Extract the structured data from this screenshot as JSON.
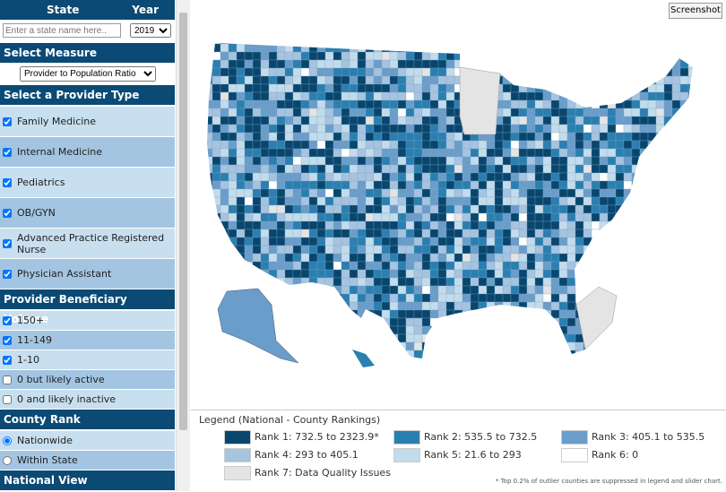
{
  "sidebar": {
    "header": {
      "state": "State",
      "year": "Year"
    },
    "state_placeholder": "Enter a state name here..",
    "year_select": "2019",
    "measure": {
      "title": "Select Measure",
      "value": "Provider to Population Ratio"
    },
    "provider_type": {
      "title": "Select a Provider Type",
      "items": [
        {
          "label": "Family Medicine",
          "checked": true
        },
        {
          "label": "Internal Medicine",
          "checked": true
        },
        {
          "label": "Pediatrics",
          "checked": true
        },
        {
          "label": "OB/GYN",
          "checked": true
        },
        {
          "label": "Advanced Practice Registered Nurse",
          "checked": true
        },
        {
          "label": "Physician Assistant",
          "checked": true
        }
      ]
    },
    "beneficiary_volume": {
      "title": "Provider Beneficiary Volume",
      "items": [
        {
          "label": "150+",
          "checked": true
        },
        {
          "label": "11-149",
          "checked": true
        },
        {
          "label": "1-10",
          "checked": true
        },
        {
          "label": "0 but likely active",
          "checked": false
        },
        {
          "label": "0 and likely inactive",
          "checked": false
        }
      ]
    },
    "county_rank": {
      "title": "County Rank",
      "options": [
        {
          "label": "Nationwide",
          "selected": true
        },
        {
          "label": "Within State",
          "selected": false
        }
      ]
    },
    "national_view": "National View"
  },
  "screenshot_button": "Screenshot",
  "legend": {
    "title": "Legend (National - County Rankings)",
    "items": [
      {
        "label": "Rank 1: 732.5 to 2323.9*",
        "color": "#08466e"
      },
      {
        "label": "Rank 2: 535.5 to 732.5",
        "color": "#2a7fb0"
      },
      {
        "label": "Rank 3: 405.1 to 535.5",
        "color": "#6a9dc9"
      },
      {
        "label": "Rank 4: 293 to 405.1",
        "color": "#a6c3e0"
      },
      {
        "label": "Rank 5: 21.6 to 293",
        "color": "#c3dcec"
      },
      {
        "label": "Rank 6: 0",
        "color": "#ffffff"
      },
      {
        "label": "Rank 7: Data Quality Issues",
        "color": "#e4e4e4"
      }
    ],
    "footnote": "* Top 0.2% of outlier counties are suppressed in legend and slider chart."
  }
}
